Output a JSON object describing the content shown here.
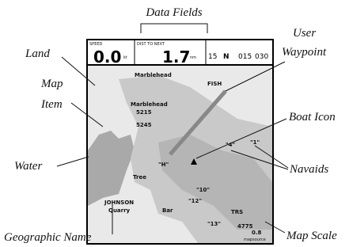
{
  "callouts": {
    "data_fields": "Data Fields",
    "land": "Land",
    "map_item": [
      "Map",
      "Item"
    ],
    "water": "Water",
    "geographic_name": "Geographic Name",
    "user_waypoint": [
      "User",
      "Waypoint"
    ],
    "boat_icon": "Boat Icon",
    "navaids": "Navaids",
    "map_scale": "Map Scale"
  },
  "screen": {
    "fields": [
      {
        "label": "SPEED",
        "value": "0.0",
        "unit": "kt"
      },
      {
        "label": "DIST TO NEXT",
        "value": "1.7",
        "unit": "nm"
      }
    ],
    "compass": [
      "15",
      "N",
      "015",
      "030"
    ],
    "map_labels": [
      "Marblehead",
      "Marblehead",
      "5215",
      "5245",
      "FISH",
      "JOHNSON",
      "Quarry",
      "Tree",
      "TRS",
      "Bar",
      "\"1\"",
      "\"4\"",
      "\"H\"",
      "\"10\"",
      "\"12\"",
      "\"13\"",
      "4775"
    ],
    "scale": "0.8",
    "source": "mapsource"
  }
}
